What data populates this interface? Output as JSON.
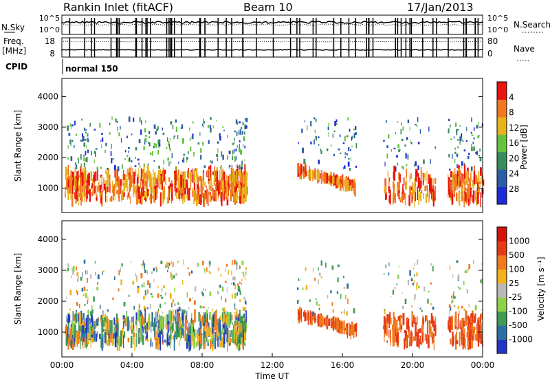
{
  "header": {
    "station": "Rankin Inlet (fitACF)",
    "beam": "Beam 10",
    "date": "17/Jan/2013"
  },
  "top_panel": {
    "left_labels": {
      "nsky": "N.Sky",
      "freq": "Freq.",
      "freq_unit": "[MHz]",
      "cpid": "CPID"
    },
    "right_labels": {
      "nsearch": "N.Search",
      "nave": "Nave"
    },
    "nsky_ticks": [
      "10^5",
      "10^0"
    ],
    "freq_ticks": [
      "18",
      "8"
    ],
    "nsearch_ticks": [
      "10^5",
      "10^0"
    ],
    "nave_ticks": [
      "80",
      "0"
    ],
    "cpid_text": "normal 150"
  },
  "chart_data": [
    {
      "type": "heatmap",
      "panel": "power",
      "ylabel": "Slant Range [km]",
      "yticks": [
        "1000",
        "2000",
        "3000",
        "4000"
      ],
      "ylim": [
        200,
        4600
      ],
      "colorbar_label": "Power [dB]",
      "colorbar_ticks": [
        "4",
        "8",
        "12",
        "16",
        "20",
        "24",
        "28"
      ],
      "colors": [
        "#1e2bd6",
        "#2a5fa6",
        "#3a8a5c",
        "#64c23c",
        "#e8b21a",
        "#f07820",
        "#e8140e"
      ],
      "x_range": [
        "00:00",
        "24:00"
      ]
    },
    {
      "type": "heatmap",
      "panel": "velocity",
      "ylabel": "Slant Range [km]",
      "yticks": [
        "1000",
        "2000",
        "3000",
        "4000"
      ],
      "ylim": [
        200,
        4600
      ],
      "colorbar_label": "Velocity [m s⁻¹]",
      "colorbar_ticks": [
        "1000",
        "500",
        "100",
        "25",
        "-25",
        "-100",
        "-500",
        "-1000"
      ],
      "colors": [
        "#2335c2",
        "#2e6fa3",
        "#3f9a54",
        "#8fd24a",
        "#b8b8b8",
        "#f2b21c",
        "#f07a1e",
        "#e53b14",
        "#d4120c"
      ],
      "x_range": [
        "00:00",
        "24:00"
      ]
    }
  ],
  "xaxis": {
    "ticks": [
      "00:00",
      "04:00",
      "08:00",
      "12:00",
      "16:00",
      "20:00",
      "00:00"
    ],
    "label": "Time UT"
  }
}
